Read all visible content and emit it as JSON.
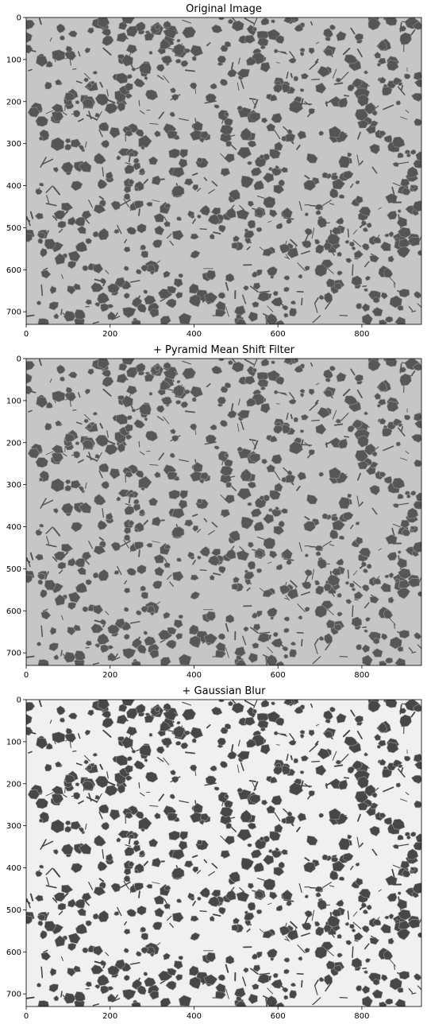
{
  "figure": {
    "panels": [
      {
        "title": "Original Image",
        "x_ticks": [
          "0",
          "200",
          "400",
          "600",
          "800"
        ],
        "y_ticks": [
          "0",
          "100",
          "200",
          "300",
          "400",
          "500",
          "600",
          "700"
        ],
        "image": {
          "background": "#c6c6c6",
          "particle": "#555555",
          "outline": "#8a8a8a",
          "seed": 11
        }
      },
      {
        "title": "+ Pyramid Mean Shift Filter",
        "x_ticks": [
          "0",
          "200",
          "400",
          "600",
          "800"
        ],
        "y_ticks": [
          "0",
          "100",
          "200",
          "300",
          "400",
          "500",
          "600",
          "700"
        ],
        "image": {
          "background": "#c6c6c6",
          "particle": "#575757",
          "outline": "#9a9a9a",
          "seed": 11
        }
      },
      {
        "title": "+ Gaussian Blur",
        "x_ticks": [
          "0",
          "200",
          "400",
          "600",
          "800"
        ],
        "y_ticks": [
          "0",
          "100",
          "200",
          "300",
          "400",
          "500",
          "600",
          "700"
        ],
        "image": {
          "background": "#f0f0f0",
          "particle": "#474747",
          "outline": "#9e9e9e",
          "seed": 11
        }
      }
    ]
  }
}
